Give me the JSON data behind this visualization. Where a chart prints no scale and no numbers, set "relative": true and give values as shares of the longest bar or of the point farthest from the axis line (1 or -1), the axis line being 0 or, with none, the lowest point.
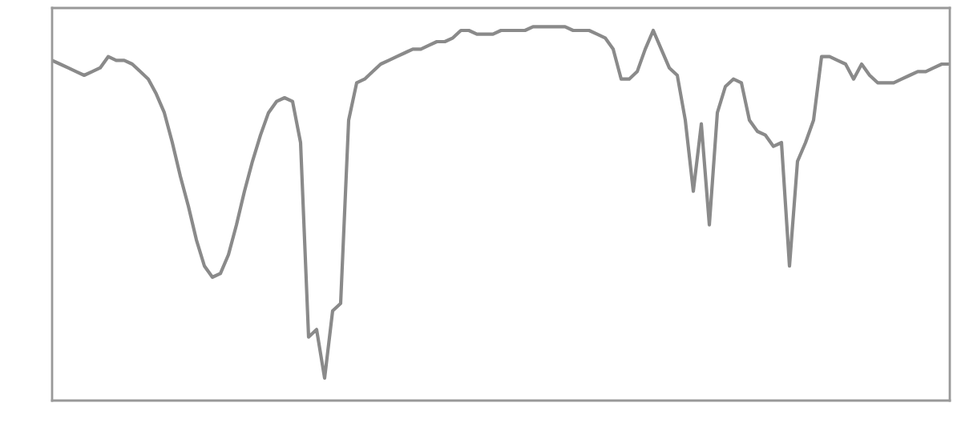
{
  "chart_data": {
    "type": "line",
    "relative": true,
    "categories": [
      null,
      null,
      null,
      null,
      null,
      null,
      null,
      null,
      null,
      null,
      null,
      null,
      null,
      null,
      null,
      null,
      null,
      null,
      null,
      null,
      null,
      null,
      null,
      null,
      null,
      null,
      null,
      null,
      null,
      null,
      null,
      null,
      null,
      null,
      null,
      null,
      null,
      null,
      null,
      null,
      null,
      null,
      null,
      null,
      null,
      null,
      null,
      null,
      null,
      null,
      null,
      null,
      null,
      null,
      null,
      null,
      null,
      null,
      null,
      null,
      null,
      null,
      null,
      null,
      null,
      null,
      null,
      null,
      null,
      null,
      null,
      null,
      null,
      null,
      null,
      null,
      null,
      null,
      null,
      null,
      null,
      null,
      null,
      null,
      null,
      null,
      null,
      null,
      null,
      null,
      null,
      null,
      null,
      null,
      null,
      null,
      null,
      null,
      null,
      null,
      null,
      null,
      null,
      null,
      null,
      null,
      null,
      null,
      null,
      null,
      null,
      null,
      null
    ],
    "series": [
      {
        "color": "#8a8a8a",
        "values": [
          0.91,
          0.9,
          0.89,
          0.88,
          0.87,
          0.88,
          0.89,
          0.92,
          0.91,
          0.91,
          0.9,
          0.88,
          0.86,
          0.82,
          0.77,
          0.69,
          0.6,
          0.52,
          0.43,
          0.36,
          0.33,
          0.34,
          0.39,
          0.47,
          0.56,
          0.64,
          0.71,
          0.77,
          0.8,
          0.81,
          0.8,
          0.69,
          0.17,
          0.19,
          0.06,
          0.24,
          0.26,
          0.75,
          0.85,
          0.86,
          0.88,
          0.9,
          0.91,
          0.92,
          0.93,
          0.94,
          0.94,
          0.95,
          0.96,
          0.96,
          0.97,
          0.99,
          0.99,
          0.98,
          0.98,
          0.98,
          0.99,
          0.99,
          0.99,
          0.99,
          1.0,
          1.0,
          1.0,
          1.0,
          1.0,
          0.99,
          0.99,
          0.99,
          0.98,
          0.97,
          0.94,
          0.86,
          0.86,
          0.88,
          0.94,
          0.99,
          0.94,
          0.89,
          0.87,
          0.75,
          0.56,
          0.74,
          0.47,
          0.77,
          0.84,
          0.86,
          0.85,
          0.75,
          0.72,
          0.71,
          0.68,
          0.69,
          0.36,
          0.64,
          0.69,
          0.75,
          0.92,
          0.92,
          0.91,
          0.9,
          0.86,
          0.9,
          0.87,
          0.85,
          0.85,
          0.85,
          0.86,
          0.87,
          0.88,
          0.88,
          0.89,
          0.9,
          0.9
        ]
      }
    ],
    "grid": false,
    "line_style": "solid",
    "marker": "none"
  }
}
